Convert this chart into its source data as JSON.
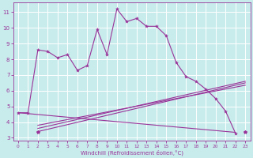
{
  "bg_color": "#c8ecec",
  "grid_color": "#ffffff",
  "line_color": "#993399",
  "xlabel": "Windchill (Refroidissement éolien,°C)",
  "xlim": [
    -0.5,
    23.5
  ],
  "ylim": [
    2.8,
    11.6
  ],
  "xticks": [
    0,
    1,
    2,
    3,
    4,
    5,
    6,
    7,
    8,
    9,
    10,
    11,
    12,
    13,
    14,
    15,
    16,
    17,
    18,
    19,
    20,
    21,
    22,
    23
  ],
  "yticks": [
    3,
    4,
    5,
    6,
    7,
    8,
    9,
    10,
    11
  ],
  "curve1_x": [
    0,
    1,
    2,
    3,
    4,
    5,
    6,
    7,
    8,
    9,
    10,
    11,
    12,
    13,
    14,
    15,
    16,
    17,
    18,
    19,
    20,
    21,
    22
  ],
  "curve1_y": [
    4.6,
    4.6,
    8.6,
    8.5,
    8.1,
    8.3,
    7.3,
    7.6,
    9.9,
    8.3,
    11.2,
    10.4,
    10.6,
    10.1,
    10.1,
    9.5,
    7.8,
    6.9,
    6.6,
    6.1,
    5.5,
    4.7,
    3.3
  ],
  "line1_x": [
    0,
    22
  ],
  "line1_y": [
    4.6,
    3.35
  ],
  "line2_x": [
    2,
    23
  ],
  "line2_y": [
    3.4,
    6.5
  ],
  "line3_x": [
    2,
    23
  ],
  "line3_y": [
    3.6,
    6.6
  ],
  "line4_x": [
    2,
    23
  ],
  "line4_y": [
    3.8,
    6.35
  ],
  "lone_point_x": [
    2
  ],
  "lone_point_y": [
    3.4
  ],
  "lone_point2_x": [
    23
  ],
  "lone_point2_y": [
    3.4
  ]
}
